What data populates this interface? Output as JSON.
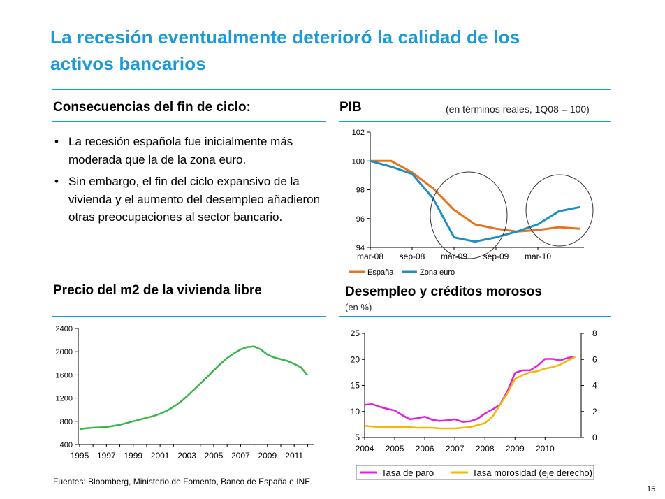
{
  "title": "La recesión eventualmente deterioró la calidad de los activos bancarios",
  "colors": {
    "accent": "#1a9ad6",
    "espana": "#e8731e",
    "zona_euro": "#1f8fc2",
    "vivienda": "#39b54a",
    "paro": "#e020e0",
    "morosidad": "#f5b800"
  },
  "left_top": {
    "heading": "Consecuencias del fin de ciclo:",
    "bullets": [
      "La recesión española fue inicialmente más moderada que la de la zona euro.",
      "Sin embargo, el fin del ciclo expansivo de la vivienda y el aumento del desempleo añadieron otras preocupaciones al sector bancario."
    ]
  },
  "pib": {
    "heading": "PIB",
    "subtitle": "(en términos reales, 1Q08 = 100)"
  },
  "vivienda": {
    "heading": "Precio del m2 de la vivienda libre"
  },
  "desempleo": {
    "heading": "Desempleo y créditos morosos",
    "subtitle": "(en %)"
  },
  "source": "Fuentes: Bloomberg, Ministerio de Fomento, Banco de España e INE.",
  "page_number": "15",
  "chart_data": [
    {
      "id": "pib",
      "type": "line",
      "x": [
        "mar-08",
        "jun-08",
        "sep-08",
        "dic-08",
        "mar-09",
        "jun-09",
        "sep-09",
        "dic-09",
        "mar-10",
        "jun-10",
        "sep-10"
      ],
      "x_tick_labels": [
        "mar-08",
        "sep-08",
        "mar-09",
        "sep-09",
        "mar-10"
      ],
      "ylim": [
        94,
        102
      ],
      "y_ticks": [
        94,
        96,
        98,
        100,
        102
      ],
      "series": [
        {
          "name": "España",
          "values": [
            100.0,
            100.0,
            99.2,
            98.1,
            96.6,
            95.6,
            95.3,
            95.1,
            95.2,
            95.4,
            95.3
          ]
        },
        {
          "name": "Zona euro",
          "values": [
            100.0,
            99.6,
            99.1,
            97.4,
            94.7,
            94.4,
            94.7,
            95.1,
            95.6,
            96.5,
            96.8
          ]
        }
      ],
      "legend_position": "bottom-left"
    },
    {
      "id": "vivienda",
      "type": "line",
      "x": [
        1995,
        1995.5,
        1996,
        1996.5,
        1997,
        1997.5,
        1998,
        1998.5,
        1999,
        1999.5,
        2000,
        2000.5,
        2001,
        2001.5,
        2002,
        2002.5,
        2003,
        2003.5,
        2004,
        2004.5,
        2005,
        2005.5,
        2006,
        2006.5,
        2007,
        2007.5,
        2008,
        2008.5,
        2009,
        2009.5,
        2010,
        2010.5,
        2011,
        2011.5,
        2012
      ],
      "values": [
        665,
        680,
        690,
        695,
        700,
        720,
        740,
        770,
        800,
        830,
        860,
        890,
        930,
        980,
        1050,
        1130,
        1230,
        1340,
        1450,
        1560,
        1680,
        1790,
        1890,
        1970,
        2040,
        2080,
        2090,
        2040,
        1950,
        1900,
        1870,
        1840,
        1790,
        1730,
        1590
      ],
      "x_tick_labels": [
        "1995",
        "1997",
        "1999",
        "2001",
        "2003",
        "2005",
        "2007",
        "2009",
        "2011"
      ],
      "ylim": [
        400,
        2400
      ],
      "y_ticks": [
        400,
        800,
        1200,
        1600,
        2000,
        2400
      ]
    },
    {
      "id": "desempleo",
      "type": "line",
      "x": [
        2004,
        2004.25,
        2004.5,
        2004.75,
        2005,
        2005.25,
        2005.5,
        2005.75,
        2006,
        2006.25,
        2006.5,
        2006.75,
        2007,
        2007.25,
        2007.5,
        2007.75,
        2008,
        2008.25,
        2008.5,
        2008.75,
        2009,
        2009.25,
        2009.5,
        2009.75,
        2010,
        2010.25,
        2010.5,
        2010.75,
        2011
      ],
      "x_tick_labels": [
        "2004",
        "2005",
        "2006",
        "2007",
        "2008",
        "2009",
        "2010"
      ],
      "ylim_left": [
        5,
        25
      ],
      "y_ticks_left": [
        5,
        10,
        15,
        20,
        25
      ],
      "ylim_right": [
        0,
        8
      ],
      "y_ticks_right": [
        0,
        2,
        4,
        6,
        8
      ],
      "series": [
        {
          "name": "Tasa de paro",
          "axis": "left",
          "values": [
            11.3,
            11.4,
            10.9,
            10.5,
            10.2,
            9.3,
            8.5,
            8.7,
            9.0,
            8.4,
            8.2,
            8.3,
            8.5,
            8.0,
            8.1,
            8.6,
            9.6,
            10.4,
            11.3,
            13.9,
            17.4,
            17.9,
            17.9,
            18.8,
            20.1,
            20.1,
            19.8,
            20.3,
            20.5
          ]
        },
        {
          "name": "Tasa morosidad (eje derecho)",
          "axis": "right",
          "values": [
            0.9,
            0.85,
            0.8,
            0.8,
            0.8,
            0.8,
            0.8,
            0.75,
            0.75,
            0.75,
            0.7,
            0.7,
            0.7,
            0.75,
            0.8,
            0.95,
            1.1,
            1.6,
            2.5,
            3.4,
            4.5,
            4.8,
            5.0,
            5.1,
            5.3,
            5.4,
            5.6,
            5.9,
            6.2
          ]
        }
      ],
      "legend_position": "bottom"
    }
  ]
}
